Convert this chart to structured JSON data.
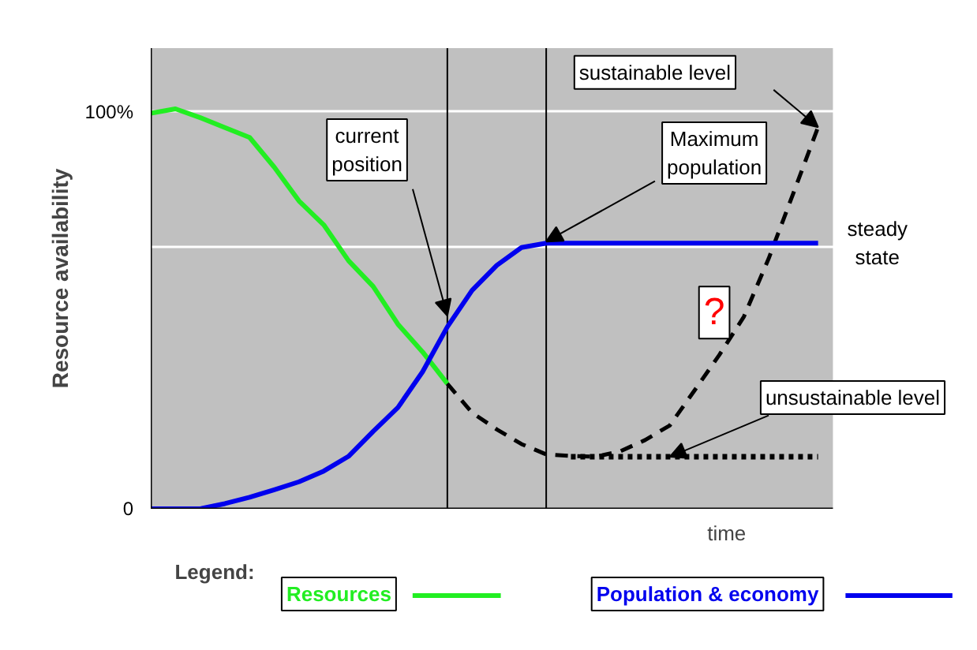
{
  "chart_data": {
    "type": "line",
    "ylabel": "Resource availability",
    "xlabel": "time",
    "legend_title": "Legend:",
    "categories": [
      null,
      null,
      null,
      null,
      null,
      null,
      null,
      null,
      null,
      null,
      null,
      null,
      null,
      null,
      null,
      null,
      null,
      null,
      null,
      null,
      null,
      null,
      null,
      null,
      null,
      null,
      null,
      null
    ],
    "ylim": [
      0,
      116
    ],
    "yticks": [
      {
        "value": 0,
        "label": "0"
      },
      {
        "value": 66,
        "label": null
      },
      {
        "value": 100,
        "label": "100%"
      }
    ],
    "tick_labels": "y",
    "grid": "y",
    "legend": "bottom",
    "series": [
      {
        "name": "Resources",
        "color": "#22ee22",
        "line_style": "solid",
        "values": [
          99.6,
          100.7,
          98.5,
          96,
          93.5,
          86,
          77.5,
          71.5,
          62.5,
          56,
          46.5,
          39.5,
          31.5,
          null,
          null,
          null,
          null,
          null,
          null,
          null,
          null,
          null,
          null,
          null,
          null,
          null,
          null,
          null
        ]
      },
      {
        "color": "#000000",
        "line_style": "dashed",
        "values": [
          null,
          null,
          null,
          null,
          null,
          null,
          null,
          null,
          null,
          null,
          null,
          null,
          31.5,
          24.2,
          20,
          16.3,
          13.7,
          13.3,
          13.1,
          14.5,
          17.3,
          21,
          29.8,
          38.7,
          48.4,
          63,
          79.5,
          96.1
        ]
      },
      {
        "color": "#000000",
        "line_style": "dotted",
        "values": [
          null,
          null,
          null,
          null,
          null,
          null,
          null,
          null,
          null,
          null,
          null,
          null,
          null,
          null,
          null,
          null,
          null,
          13.1,
          13.1,
          13.1,
          13.1,
          13.1,
          13.1,
          13.1,
          13.1,
          13.1,
          13.1,
          13.1
        ]
      },
      {
        "name": "Population & economy",
        "color": "#0000ee",
        "line_style": "solid",
        "values": [
          0,
          0,
          0,
          1.3,
          2.9,
          4.8,
          6.8,
          9.5,
          13.2,
          19.5,
          25.5,
          34.5,
          45.8,
          55,
          61.3,
          65.8,
          66.9,
          66.9,
          66.9,
          66.9,
          66.9,
          66.9,
          66.9,
          66.9,
          66.9,
          66.9,
          66.9,
          66.9
        ]
      }
    ],
    "annotations": [
      "current position",
      "Maximum population",
      "sustainable level",
      "unsustainable level",
      "steady state",
      "?"
    ]
  }
}
